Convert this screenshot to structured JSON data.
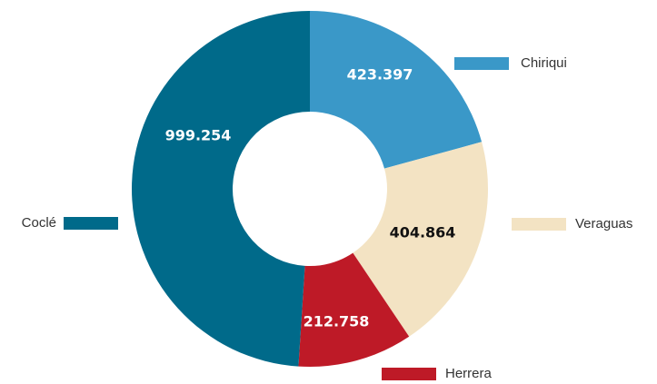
{
  "chart_data": {
    "type": "donut",
    "categories": [
      "Chiriqui",
      "Veraguas",
      "Herrera",
      "Coclé"
    ],
    "values": [
      423397,
      404864,
      212758,
      999254
    ],
    "value_labels": [
      "423.397",
      "404.864",
      "212.758",
      "999.254"
    ],
    "colors": [
      "#3a98c8",
      "#f3e3c3",
      "#be1a27",
      "#006a8a"
    ]
  }
}
